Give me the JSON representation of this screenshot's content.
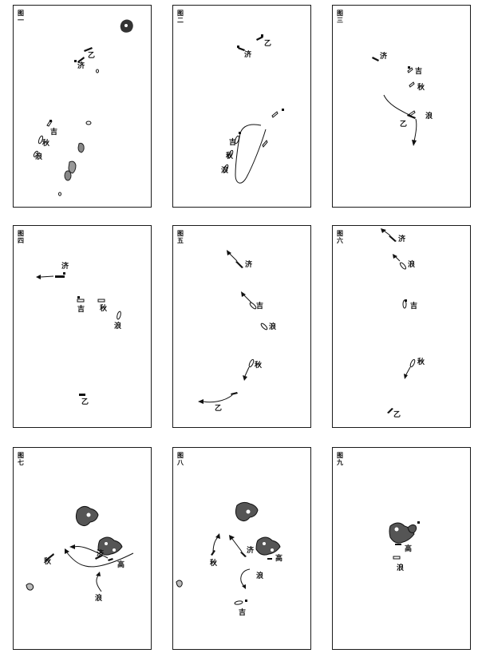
{
  "panels": [
    {
      "title": "图一",
      "labels": [
        "济",
        "乙",
        "吉",
        "秋",
        "浪"
      ]
    },
    {
      "title": "图二",
      "labels": [
        "济",
        "乙",
        "吉",
        "秋",
        "浪"
      ]
    },
    {
      "title": "图三",
      "labels": [
        "济",
        "吉",
        "秋",
        "浪",
        "乙"
      ]
    },
    {
      "title": "图四",
      "labels": [
        "济",
        "吉",
        "秋",
        "浪",
        "乙"
      ]
    },
    {
      "title": "图五",
      "labels": [
        "济",
        "吉",
        "浪",
        "秋",
        "乙"
      ]
    },
    {
      "title": "图六",
      "labels": [
        "济",
        "浪",
        "吉",
        "秋",
        "乙"
      ]
    },
    {
      "title": "图七",
      "labels": [
        "秋",
        "济",
        "高",
        "浪"
      ]
    },
    {
      "title": "图八",
      "labels": [
        "秋",
        "济",
        "高",
        "浪",
        "吉"
      ]
    },
    {
      "title": "图九",
      "labels": [
        "高",
        "浪"
      ]
    }
  ],
  "colors": {
    "ink": "#111111",
    "island": "#555555",
    "land": "#9a9a9a"
  }
}
